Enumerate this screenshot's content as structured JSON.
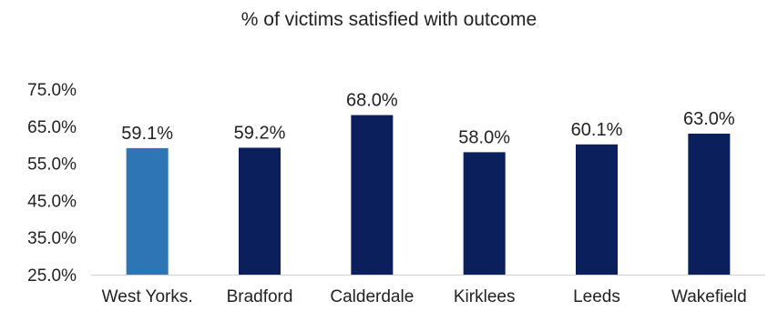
{
  "chart_data": {
    "type": "bar",
    "title": "% of victims satisfied  with outcome",
    "xlabel": "",
    "ylabel": "",
    "categories": [
      "West Yorks.",
      "Bradford",
      "Calderdale",
      "Kirklees",
      "Leeds",
      "Wakefield"
    ],
    "values": [
      59.1,
      59.2,
      68.0,
      58.0,
      60.1,
      63.0
    ],
    "value_labels": [
      "59.1%",
      "59.2%",
      "68.0%",
      "58.0%",
      "60.1%",
      "63.0%"
    ],
    "bar_colors": [
      "#2e75b6",
      "#0b1f5c",
      "#0b1f5c",
      "#0b1f5c",
      "#0b1f5c",
      "#0b1f5c"
    ],
    "ylim": [
      25,
      75
    ],
    "yticks": [
      25,
      35,
      45,
      55,
      65,
      75
    ],
    "ytick_labels": [
      "25.0%",
      "35.0%",
      "45.0%",
      "55.0%",
      "65.0%",
      "75.0%"
    ],
    "grid": false,
    "legend": "none"
  }
}
